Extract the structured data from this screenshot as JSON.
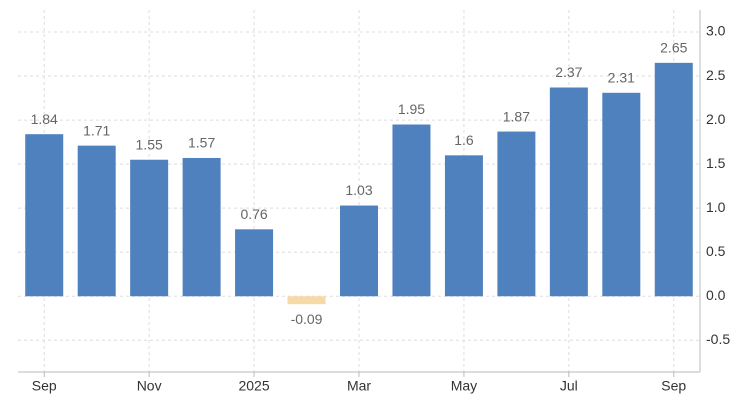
{
  "chart_data": {
    "type": "bar",
    "categories": [
      "Sep",
      null,
      "Nov",
      null,
      "2025",
      null,
      "Mar",
      null,
      "May",
      null,
      "Jul",
      null,
      "Sep"
    ],
    "values": [
      1.84,
      1.71,
      1.55,
      1.57,
      0.76,
      -0.09,
      1.03,
      1.95,
      1.6,
      1.87,
      2.37,
      2.31,
      2.65
    ],
    "color": "#4e81be",
    "negative_color": "#f6d9a9",
    "ylim": [
      -0.86,
      3.25
    ],
    "yticks": [
      -0.5,
      {
        "value": 0,
        "label": "0.0"
      },
      0.5,
      {
        "value": 1,
        "label": "1.0"
      },
      1.5,
      {
        "value": 2,
        "label": "2.0"
      },
      2.5,
      {
        "value": 3,
        "label": "3.0"
      }
    ],
    "grid": true
  }
}
